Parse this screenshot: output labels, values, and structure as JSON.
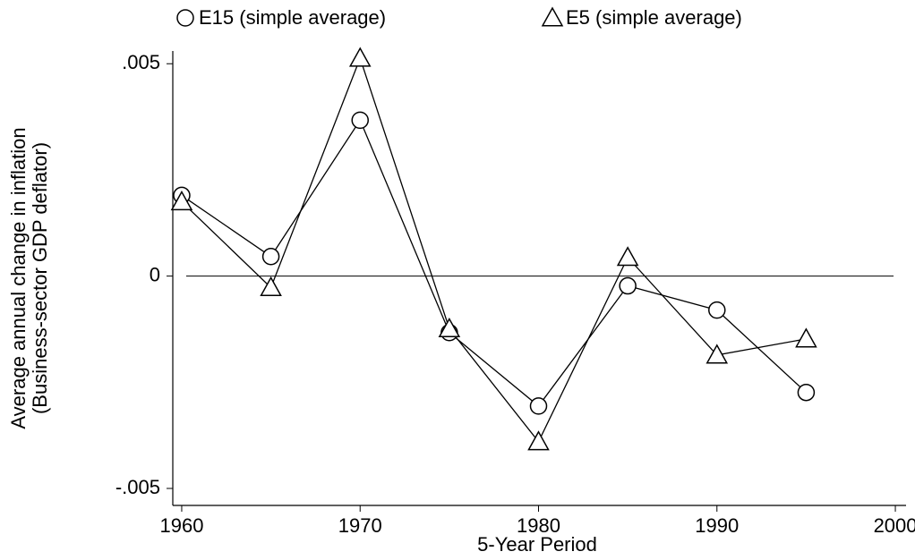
{
  "chart_data": {
    "type": "line",
    "x_label": "5-Year Period",
    "y_label": [
      "Average annual change in inflation",
      "(Business-sector GDP deflator)"
    ],
    "x": [
      1960,
      1965,
      1970,
      1975,
      1980,
      1985,
      1990,
      1995
    ],
    "series": [
      {
        "name": "E15 (simple average)",
        "marker": "circle",
        "color": "#000000",
        "values": [
          0.0019,
          0.00046,
          0.00367,
          -0.00133,
          -0.00306,
          -0.00023,
          -0.0008,
          -0.00274
        ]
      },
      {
        "name": "E5 (simple average)",
        "marker": "triangle",
        "color": "#000000",
        "values": [
          0.00175,
          -0.00027,
          0.00513,
          -0.00124,
          -0.0039,
          0.00044,
          -0.00186,
          -0.00148
        ]
      }
    ],
    "xlim": [
      1959.5,
      2000.6
    ],
    "ylim": [
      -0.0054,
      0.0053
    ],
    "xticks": [
      1960,
      1970,
      1980,
      1990,
      2000
    ],
    "yticks": [
      {
        "value": -0.005,
        "label": "-.005"
      },
      0,
      {
        "value": 0.005,
        "label": ".005"
      }
    ],
    "hline": 0,
    "grid": false
  }
}
